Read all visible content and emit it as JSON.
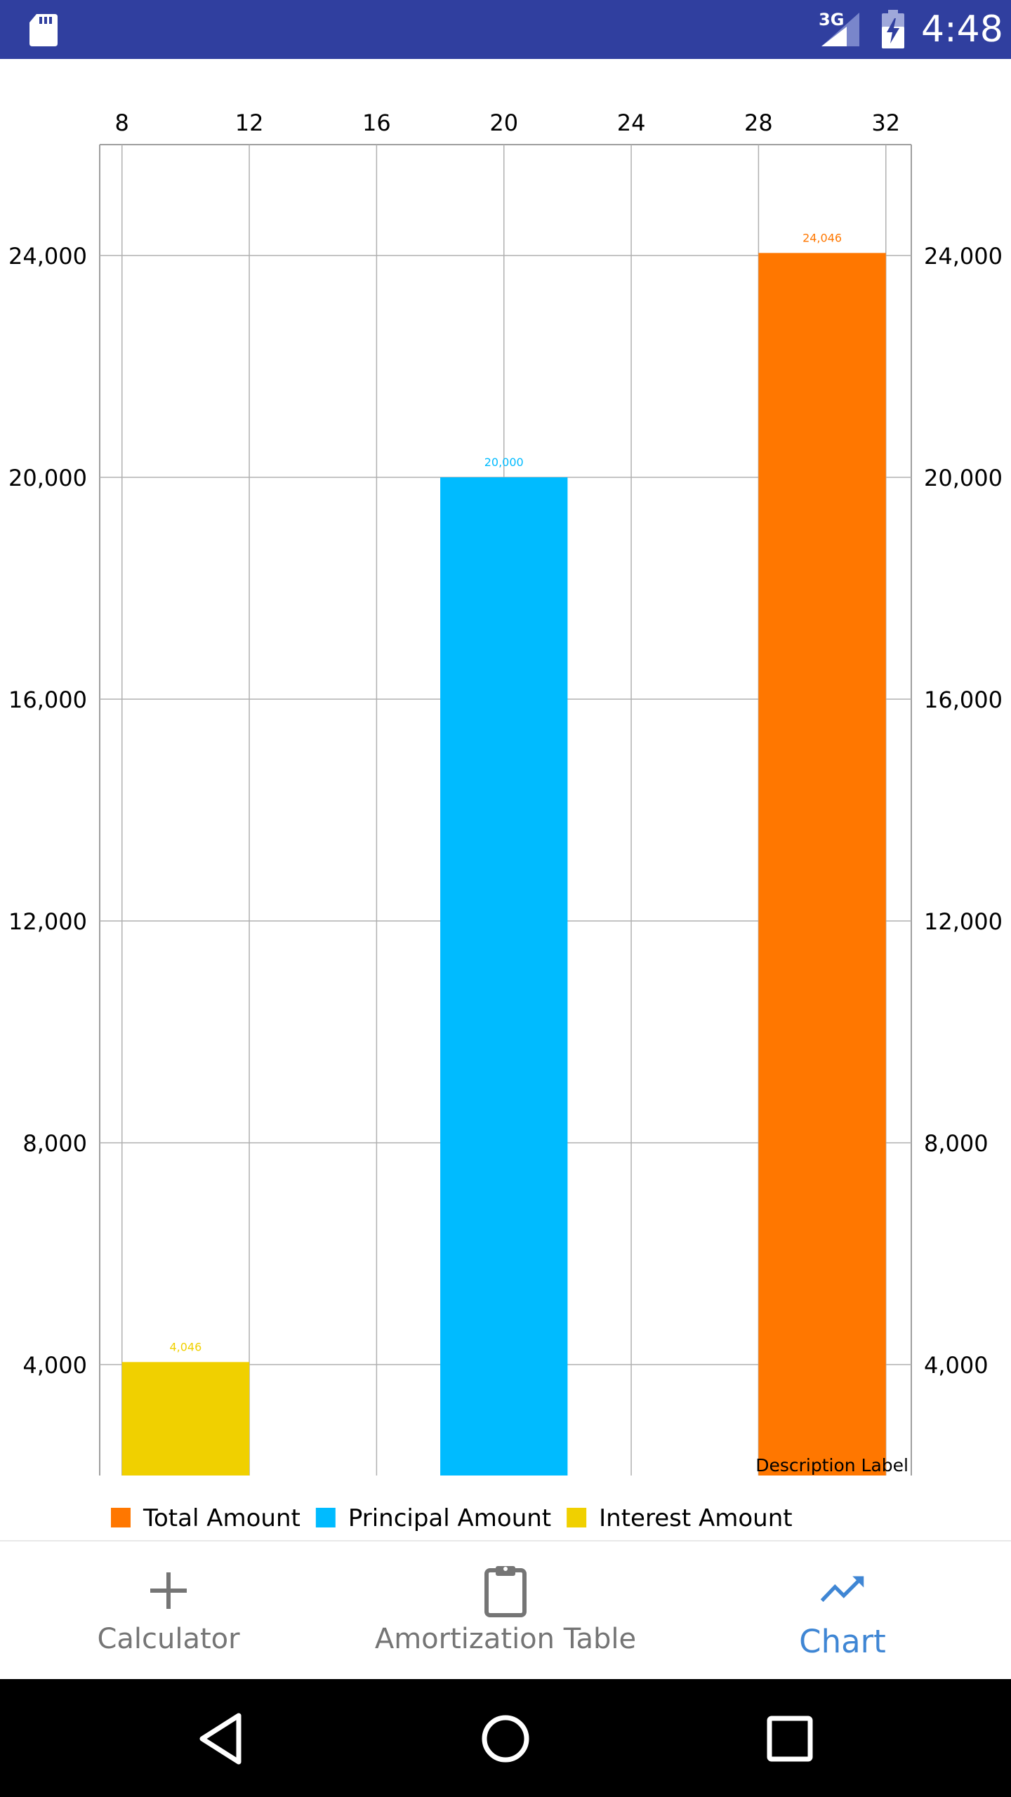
{
  "status_bar": {
    "network": "3G",
    "time": "4:48",
    "background": "#303f9f",
    "icons": [
      "sd-card-icon",
      "signal-icon",
      "battery-charging-icon"
    ]
  },
  "chart_data": {
    "type": "bar",
    "title": "",
    "xlabel": "",
    "ylabel": "",
    "xlim": [
      7.3,
      32.8
    ],
    "ylim": [
      2000,
      26000
    ],
    "x_ticks": [
      8,
      12,
      16,
      20,
      24,
      28,
      32
    ],
    "x_tick_labels": [
      "8",
      "12",
      "16",
      "20",
      "24",
      "28",
      "32"
    ],
    "y_ticks": [
      4000,
      8000,
      12000,
      16000,
      20000,
      24000
    ],
    "y_tick_labels": [
      "4,000",
      "8,000",
      "12,000",
      "16,000",
      "20,000",
      "24,000"
    ],
    "grid": true,
    "x_axis_position": "top",
    "y_axis": "both sides",
    "bar_width": 4,
    "series": [
      {
        "name": "Interest Amount",
        "x": 10,
        "value": 4046,
        "label": "4,046",
        "color": "#f0d000"
      },
      {
        "name": "Principal Amount",
        "x": 20,
        "value": 20000,
        "label": "20,000",
        "color": "#00bbff"
      },
      {
        "name": "Total Amount",
        "x": 30,
        "value": 24046,
        "label": "24,046",
        "color": "#ff7700"
      }
    ],
    "description": "Description Label",
    "legend": {
      "position": "bottom-left",
      "entries": [
        {
          "label": "Total Amount",
          "color": "#ff7700"
        },
        {
          "label": "Principal Amount",
          "color": "#00bbff"
        },
        {
          "label": "Interest Amount",
          "color": "#f0d000"
        }
      ]
    }
  },
  "bottom_nav": {
    "items": [
      {
        "label": "Calculator",
        "icon": "plus-icon",
        "active": false
      },
      {
        "label": "Amortization Table",
        "icon": "clipboard-icon",
        "active": false
      },
      {
        "label": "Chart",
        "icon": "trending-up-icon",
        "active": true
      }
    ],
    "active_color": "#3f86d4",
    "inactive_color": "#757575"
  },
  "system_nav": {
    "icons": [
      "back-icon",
      "home-icon",
      "recents-icon"
    ]
  }
}
